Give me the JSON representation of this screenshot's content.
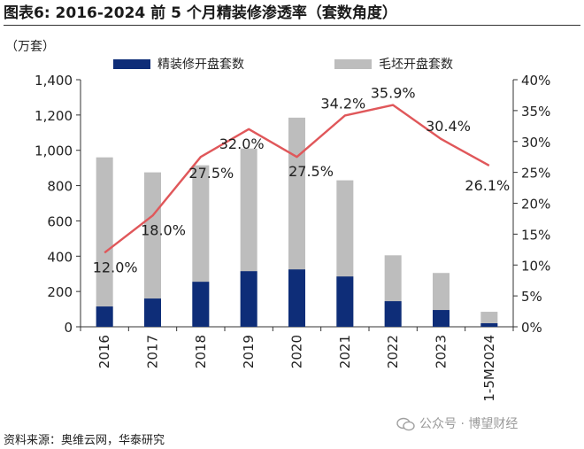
{
  "header": {
    "title": "图表6:  2016-2024 前 5 个月精装修渗透率（套数角度）"
  },
  "footer": {
    "source": "资料来源：奥维云网，华泰研究",
    "watermark": "公众号 · 博望财经"
  },
  "colors": {
    "decorated": "#0e2d78",
    "rough": "#bdbdbd",
    "rate_line": "#e0575a",
    "axis": "#333333"
  },
  "chart_data": {
    "type": "bar",
    "categories": [
      "2016",
      "2017",
      "2018",
      "2019",
      "2020",
      "2021",
      "2022",
      "2023",
      "1-5M2024"
    ],
    "y_unit_label": "（万套）",
    "ylim": [
      0,
      1400
    ],
    "y_ticks": [
      "0",
      "200",
      "400",
      "600",
      "800",
      "1,000",
      "1,200",
      "1,400"
    ],
    "y2lim": [
      0,
      40
    ],
    "y2_ticks": [
      "0%",
      "5%",
      "10%",
      "15%",
      "20%",
      "25%",
      "30%",
      "35%",
      "40%"
    ],
    "legend_position": "top",
    "grid": false,
    "series": [
      {
        "name": "精装修开盘套数",
        "type": "bar",
        "values": [
          115,
          160,
          255,
          315,
          325,
          285,
          145,
          95,
          20
        ]
      },
      {
        "name": "毛坯开盘套数",
        "type": "bar",
        "values": [
          960,
          875,
          915,
          1010,
          1185,
          830,
          405,
          305,
          85
        ]
      },
      {
        "name": "",
        "type": "line",
        "axis": "right",
        "values": [
          12.0,
          18.0,
          27.5,
          32.0,
          27.5,
          34.2,
          35.9,
          30.4,
          26.1
        ],
        "labels": [
          "12.0%",
          "18.0%",
          "27.5%",
          "32.0%",
          "27.5%",
          "34.2%",
          "35.9%",
          "30.4%",
          "26.1%"
        ]
      }
    ]
  }
}
